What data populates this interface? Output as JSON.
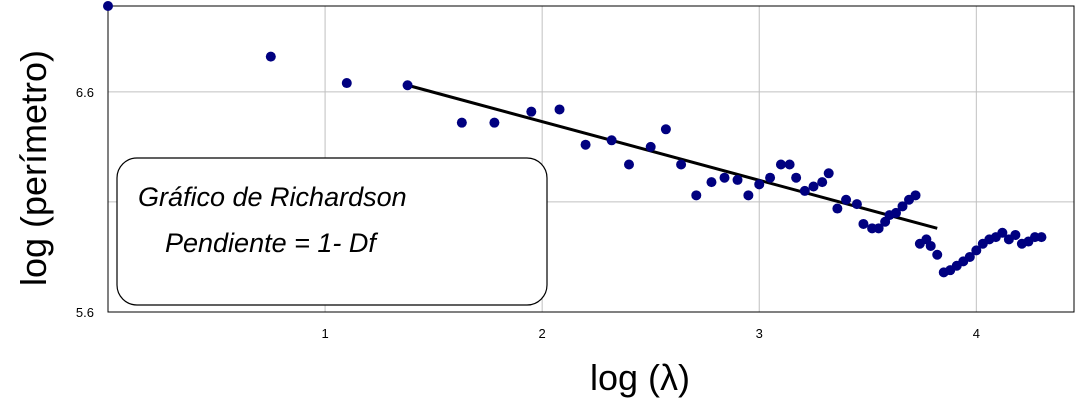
{
  "chart_data": {
    "type": "scatter",
    "xlabel": "log (λ)",
    "ylabel": "log (perímetro)",
    "xlim": [
      0,
      4.45
    ],
    "ylim": [
      5.6,
      6.99
    ],
    "x_ticks": [
      1,
      2,
      3,
      4
    ],
    "x_tick_labels": [
      "1",
      "2",
      "3",
      "4"
    ],
    "y_ticks": [
      5.6,
      6.6
    ],
    "y_tick_labels": [
      "5.6",
      "6.6"
    ],
    "grid": true,
    "annotation_lines": [
      "Gráfico de Richardson",
      "Pendiente = 1- Df"
    ],
    "point_color": "#000080",
    "series": [
      {
        "points": [
          [
            0.0,
            6.99
          ],
          [
            0.75,
            6.76
          ],
          [
            1.1,
            6.64
          ],
          [
            1.38,
            6.63
          ],
          [
            1.63,
            6.46
          ],
          [
            1.78,
            6.46
          ],
          [
            1.95,
            6.51
          ],
          [
            2.08,
            6.52
          ],
          [
            2.2,
            6.36
          ],
          [
            2.32,
            6.38
          ],
          [
            2.4,
            6.27
          ],
          [
            2.5,
            6.35
          ],
          [
            2.57,
            6.43
          ],
          [
            2.64,
            6.27
          ],
          [
            2.71,
            6.13
          ],
          [
            2.78,
            6.19
          ],
          [
            2.84,
            6.21
          ],
          [
            2.9,
            6.2
          ],
          [
            2.95,
            6.13
          ],
          [
            3.0,
            6.18
          ],
          [
            3.05,
            6.21
          ],
          [
            3.1,
            6.27
          ],
          [
            3.14,
            6.27
          ],
          [
            3.17,
            6.21
          ],
          [
            3.21,
            6.15
          ],
          [
            3.25,
            6.17
          ],
          [
            3.29,
            6.19
          ],
          [
            3.32,
            6.23
          ],
          [
            3.36,
            6.07
          ],
          [
            3.4,
            6.11
          ],
          [
            3.45,
            6.09
          ],
          [
            3.48,
            6.0
          ],
          [
            3.52,
            5.98
          ],
          [
            3.55,
            5.98
          ],
          [
            3.58,
            6.01
          ],
          [
            3.6,
            6.04
          ],
          [
            3.63,
            6.05
          ],
          [
            3.66,
            6.08
          ],
          [
            3.69,
            6.11
          ],
          [
            3.72,
            6.13
          ],
          [
            3.74,
            5.91
          ],
          [
            3.77,
            5.93
          ],
          [
            3.79,
            5.9
          ],
          [
            3.82,
            5.86
          ],
          [
            3.85,
            5.78
          ],
          [
            3.88,
            5.79
          ],
          [
            3.91,
            5.81
          ],
          [
            3.94,
            5.83
          ],
          [
            3.97,
            5.85
          ],
          [
            4.0,
            5.88
          ],
          [
            4.03,
            5.91
          ],
          [
            4.06,
            5.93
          ],
          [
            4.09,
            5.94
          ],
          [
            4.12,
            5.96
          ],
          [
            4.15,
            5.93
          ],
          [
            4.18,
            5.95
          ],
          [
            4.21,
            5.91
          ],
          [
            4.24,
            5.92
          ],
          [
            4.27,
            5.94
          ],
          [
            4.3,
            5.94
          ]
        ]
      }
    ],
    "trendline": {
      "x": [
        1.38,
        3.82
      ],
      "y": [
        6.63,
        5.98
      ]
    }
  }
}
